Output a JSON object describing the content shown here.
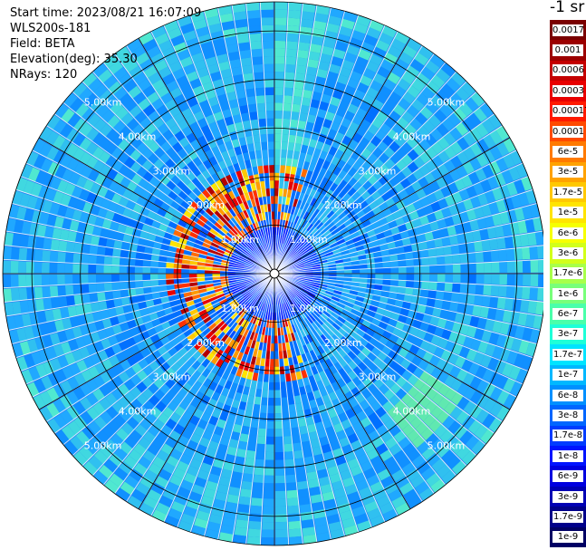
{
  "header": {
    "start_time": "Start time: 2023/08/21 16:07:09",
    "instrument": "WLS200s-181",
    "field": "Field: BETA",
    "elevation": "Elevation(deg): 35.30",
    "nrays": "NRays: 120"
  },
  "colorbar": {
    "unit_label": "-1 sr",
    "labels": [
      "0.0017",
      "0.001",
      "0.0006",
      "0.0003",
      "0.00017",
      "0.0001",
      "6e-5",
      "3e-5",
      "1.7e-5",
      "1e-5",
      "6e-6",
      "3e-6",
      "1.7e-6",
      "1e-6",
      "6e-7",
      "3e-7",
      "1.7e-7",
      "1e-7",
      "6e-8",
      "3e-8",
      "1.7e-8",
      "1e-8",
      "6e-9",
      "3e-9",
      "1.7e-9",
      "1e-9"
    ],
    "colors": [
      "#7a0000",
      "#9c0000",
      "#c40000",
      "#e80000",
      "#ff1a00",
      "#ff4a00",
      "#ff7a00",
      "#ffa200",
      "#ffc800",
      "#ffe400",
      "#f6ff00",
      "#d2ff1a",
      "#a8ff4a",
      "#78ff7a",
      "#4affaa",
      "#1effd8",
      "#00e4ff",
      "#00b8ff",
      "#0090ff",
      "#0066ff",
      "#003cff",
      "#0014ff",
      "#0000e0",
      "#0000b4",
      "#00008a",
      "#000064"
    ]
  },
  "chart_data": {
    "type": "heatmap",
    "title": "",
    "subtitle": "",
    "projection": "polar PPI",
    "field": "BETA",
    "elevation_deg": 35.3,
    "n_rays": 120,
    "range_rings_km": [
      1,
      2,
      3,
      4,
      5
    ],
    "range_ring_labels": [
      "1.00km",
      "2.00km",
      "3.00km",
      "4.00km",
      "5.00km"
    ],
    "max_range_km": 5.6,
    "spoke_angles_deg": [
      0,
      30,
      60,
      90,
      120,
      150,
      180,
      210,
      240,
      270,
      300,
      330
    ],
    "dominant_value_near_field": "1e-8 to 3e-8",
    "dominant_value_far_field": "1.7e-8 to 6e-8",
    "enhanced_ring_range_km": [
      1.0,
      2.2
    ],
    "enhanced_ring_value_range": [
      "1e-5",
      "1.7e-4"
    ],
    "colorbar_scale": "log"
  }
}
